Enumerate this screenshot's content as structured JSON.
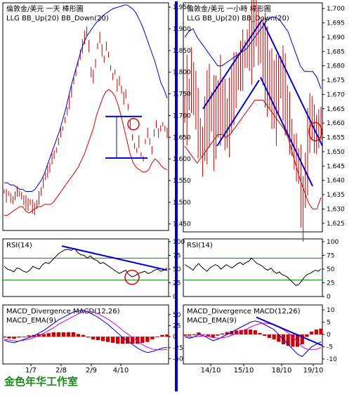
{
  "footer": "金色年华工作室",
  "chart_data": [
    {
      "type": "line",
      "title": "倫敦金/美元 一天 棒形圖",
      "legend": [
        "LLG",
        "BB_Up(20)",
        "BB_Down(20)"
      ],
      "y_ticks": [
        1450,
        1500,
        1550,
        1600,
        1650,
        1700,
        1750,
        1800,
        1850,
        1900,
        1950
      ],
      "ylim": [
        1435,
        1960
      ],
      "x_tick_labels": [
        "1/7",
        "2/8",
        "2/9",
        "4/10"
      ],
      "colors": {
        "price": "#cc0000",
        "bb_up": "#0000cc",
        "bb_down": "#cc0000",
        "annotation": "#0000cc",
        "circle": "#e00000"
      },
      "price": [
        1525,
        1515,
        1520,
        1510,
        1505,
        1515,
        1525,
        1520,
        1515,
        1505,
        1500,
        1495,
        1500,
        1490,
        1485,
        1495,
        1510,
        1525,
        1545,
        1560,
        1570,
        1580,
        1600,
        1610,
        1620,
        1640,
        1660,
        1670,
        1690,
        1710,
        1730,
        1755,
        1780,
        1800,
        1820,
        1840,
        1860,
        1880,
        1895,
        1860,
        1800,
        1790,
        1820,
        1860,
        1880,
        1850,
        1830,
        1860,
        1840,
        1810,
        1790,
        1800,
        1770,
        1780,
        1760,
        1740,
        1750,
        1720,
        1680,
        1650,
        1630,
        1620,
        1640,
        1610,
        1600,
        1640,
        1660,
        1640,
        1620,
        1660,
        1680,
        1660,
        1670,
        1680,
        1670,
        1660
      ],
      "bb_up": [
        1545,
        1545,
        1540,
        1540,
        1535,
        1530,
        1530,
        1525,
        1525,
        1525,
        1530,
        1540,
        1550,
        1565,
        1585,
        1605,
        1625,
        1645,
        1665,
        1690,
        1715,
        1745,
        1775,
        1800,
        1825,
        1850,
        1870,
        1885,
        1895,
        1905,
        1915,
        1920,
        1930,
        1935,
        1940,
        1945,
        1948,
        1950,
        1952,
        1955,
        1955,
        1950,
        1945,
        1935,
        1920,
        1905,
        1885,
        1865,
        1845,
        1825,
        1800,
        1775,
        1760,
        1740
      ],
      "bb_down": [
        1470,
        1470,
        1475,
        1480,
        1485,
        1490,
        1490,
        1480,
        1475,
        1480,
        1485,
        1490,
        1490,
        1495,
        1495,
        1495,
        1500,
        1510,
        1520,
        1530,
        1540,
        1550,
        1560,
        1570,
        1580,
        1595,
        1610,
        1630,
        1650,
        1670,
        1700,
        1720,
        1740,
        1755,
        1760,
        1755,
        1745,
        1725,
        1700,
        1670,
        1640,
        1610,
        1590,
        1580,
        1575,
        1570,
        1570,
        1575,
        1590,
        1600,
        1595,
        1585,
        1578,
        1575
      ],
      "annotations": {
        "resistance": 1698,
        "support": 1602,
        "circle_at": 1680
      }
    },
    {
      "type": "line",
      "title": "倫敦金/美元 一小時 棒形圖",
      "legend": [
        "LLG",
        "BB_Up(20)",
        "BB_Down(20)"
      ],
      "y_ticks": [
        1625,
        1630,
        1635,
        1640,
        1645,
        1650,
        1655,
        1660,
        1665,
        1670,
        1675,
        1680,
        1685,
        1690,
        1695,
        1700
      ],
      "ylim": [
        1622,
        1702
      ],
      "x_tick_labels": [
        "14/10",
        "15/10",
        "18/10",
        "19/10"
      ],
      "price": [
        1665,
        1668,
        1670,
        1675,
        1672,
        1668,
        1660,
        1655,
        1650,
        1658,
        1662,
        1666,
        1664,
        1660,
        1662,
        1665,
        1668,
        1666,
        1663,
        1660,
        1662,
        1668,
        1672,
        1675,
        1678,
        1680,
        1682,
        1684,
        1686,
        1688,
        1690,
        1693,
        1695,
        1690,
        1688,
        1685,
        1682,
        1678,
        1675,
        1672,
        1670,
        1668,
        1673,
        1676,
        1674,
        1670,
        1665,
        1660,
        1655,
        1650,
        1648,
        1645,
        1638,
        1630,
        1640,
        1650,
        1660,
        1662,
        1658,
        1656,
        1658,
        1660
      ],
      "bb_up": [
        1690,
        1692,
        1693,
        1690,
        1688,
        1686,
        1684,
        1682,
        1680,
        1680,
        1681,
        1682,
        1683,
        1684,
        1685,
        1686,
        1688,
        1690,
        1692,
        1694,
        1696,
        1697,
        1697,
        1696,
        1694,
        1692,
        1688,
        1684,
        1680,
        1678,
        1678,
        1678,
        1676,
        1672
      ],
      "bb_down": [
        1652,
        1650,
        1648,
        1646,
        1648,
        1650,
        1652,
        1654,
        1656,
        1656,
        1655,
        1656,
        1658,
        1660,
        1662,
        1664,
        1666,
        1668,
        1668,
        1668,
        1666,
        1664,
        1662,
        1660,
        1658,
        1655,
        1650,
        1645,
        1640,
        1636,
        1632,
        1630,
        1630,
        1634
      ],
      "annotations": {
        "upper_channel_from": 1665,
        "upper_channel_to": 1696,
        "lower_channel_from": 1652,
        "lower_channel_to": 1675,
        "down_line_from": 1695,
        "down_line_to": 1652,
        "down_lower_from": 1676,
        "down_lower_to": 1638,
        "circle_at": 1657
      }
    },
    {
      "type": "line",
      "title": "RSI(14)",
      "y_ticks": [
        0,
        25,
        50,
        75,
        100
      ],
      "ylim": [
        0,
        105
      ],
      "levels": [
        70,
        30
      ],
      "rsi_daily": [
        55,
        50,
        48,
        45,
        52,
        50,
        46,
        44,
        48,
        55,
        52,
        50,
        58,
        62,
        60,
        66,
        72,
        78,
        82,
        85,
        86,
        84,
        88,
        80,
        76,
        75,
        70,
        74,
        68,
        66,
        60,
        62,
        58,
        54,
        50,
        46,
        42,
        45,
        48,
        40,
        36,
        38,
        42,
        44,
        46,
        42,
        44,
        48,
        50,
        46,
        48,
        52
      ],
      "rsi_hourly": [
        58,
        55,
        52,
        48,
        55,
        60,
        54,
        50,
        46,
        52,
        55,
        58,
        56,
        50,
        54,
        58,
        55,
        52,
        56,
        60,
        62,
        58,
        62,
        64,
        70,
        65,
        60,
        58,
        55,
        50,
        48,
        52,
        46,
        42,
        45,
        40,
        38,
        35,
        30,
        25,
        20,
        22,
        28,
        35,
        40,
        42,
        45,
        48,
        46,
        50
      ]
    },
    {
      "type": "line",
      "title": "MACD_Divergence MACD(12,26) MACD_EMA(9)",
      "y_ticks_left": [
        50,
        25,
        0,
        -25,
        -50
      ],
      "y_ticks_right": [
        10,
        5,
        0,
        -5,
        -10
      ],
      "macd_daily": [
        -8,
        -12,
        -14,
        -10,
        -6,
        -2,
        2,
        8,
        14,
        22,
        30,
        38,
        44,
        50,
        56,
        58,
        60,
        56,
        50,
        44,
        36,
        28,
        18,
        8,
        -2,
        -10,
        -18,
        -26,
        -32,
        -36,
        -34,
        -30,
        -26,
        -24
      ],
      "signal_daily": [
        -6,
        -8,
        -10,
        -10,
        -8,
        -6,
        -2,
        2,
        8,
        14,
        20,
        28,
        34,
        40,
        46,
        52,
        56,
        58,
        56,
        52,
        46,
        40,
        32,
        24,
        14,
        6,
        -2,
        -10,
        -18,
        -24,
        -28,
        -30,
        -30,
        -29
      ],
      "hist_daily": [
        -2,
        -4,
        -5,
        -2,
        0,
        3,
        4,
        6,
        6,
        8,
        10,
        10,
        10,
        10,
        10,
        6,
        4,
        -2,
        -6,
        -8,
        -10,
        -12,
        -14,
        -16,
        -16,
        -16,
        -16,
        -16,
        -14,
        -12,
        -6,
        0,
        4,
        5
      ],
      "macd_hourly": [
        -1,
        -1.5,
        -1,
        0,
        -0.5,
        -1.5,
        -2.5,
        -2,
        -1,
        0,
        1,
        2,
        3,
        4,
        5,
        5.5,
        5,
        4,
        3,
        2,
        0,
        -2,
        -4,
        -6,
        -8,
        -9,
        -7,
        -5,
        -4,
        -3
      ],
      "signal_hourly": [
        -0.5,
        -1,
        -1,
        -0.8,
        -0.6,
        -0.8,
        -1.2,
        -1.5,
        -1.4,
        -1,
        -0.4,
        0.4,
        1.2,
        2,
        3,
        3.8,
        4.4,
        4.6,
        4.4,
        4,
        3,
        2,
        0.6,
        -1,
        -3,
        -5,
        -6,
        -6.2,
        -6,
        -5.4
      ],
      "hist_hourly": [
        -0.5,
        -0.5,
        0,
        0.8,
        0.1,
        -0.7,
        -1.3,
        -0.5,
        0.4,
        1,
        1.4,
        1.6,
        1.8,
        2,
        2,
        1.7,
        0.6,
        -0.6,
        -1.4,
        -2,
        -3,
        -4,
        -4.6,
        -5,
        -5,
        -4,
        -1,
        1.2,
        2,
        2.4
      ]
    }
  ]
}
